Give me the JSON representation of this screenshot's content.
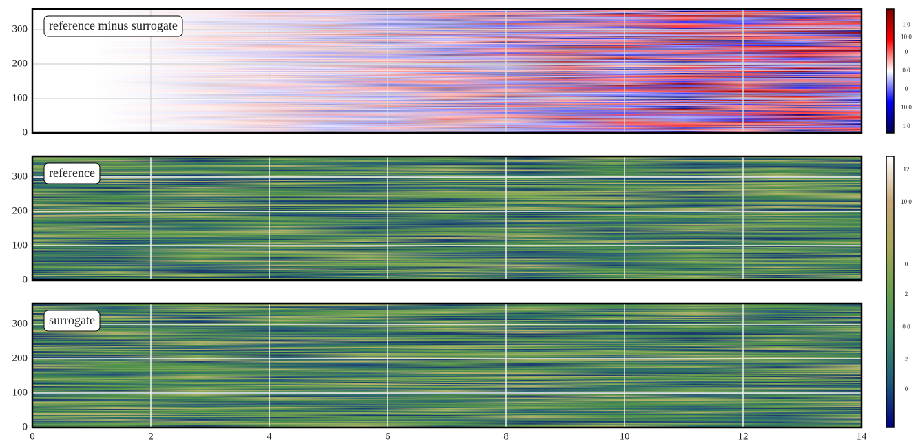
{
  "chart_data": [
    {
      "type": "heatmap",
      "label": "reference minus surrogate",
      "colormap": "seismic",
      "grid_color": "#d9d9d9",
      "xlim": [
        0,
        14
      ],
      "xticks": [
        0,
        2,
        4,
        6,
        8,
        10,
        12,
        14
      ],
      "ylim": [
        0,
        360
      ],
      "yticks": [
        0,
        100,
        200,
        300
      ]
    },
    {
      "type": "heatmap",
      "label": "reference",
      "colormap": "gist_earth",
      "grid_color": "#f2f2f2",
      "xlim": [
        0,
        14
      ],
      "xticks": [
        0,
        2,
        4,
        6,
        8,
        10,
        12,
        14
      ],
      "ylim": [
        0,
        360
      ],
      "yticks": [
        0,
        100,
        200,
        300
      ]
    },
    {
      "type": "heatmap",
      "label": "surrogate",
      "colormap": "gist_earth",
      "grid_color": "#f2f2f2",
      "xlim": [
        0,
        14
      ],
      "xticks": [
        0,
        2,
        4,
        6,
        8,
        10,
        12,
        14
      ],
      "ylim": [
        0,
        360
      ],
      "yticks": [
        0,
        100,
        200,
        300
      ]
    }
  ],
  "colorbars": [
    {
      "colormap": "seismic",
      "tick_labels": [
        "1 0",
        "10 0",
        "0",
        "0 0",
        "0",
        "10 0",
        "1 0"
      ]
    },
    {
      "colormap": "gist_earth",
      "tick_labels": [
        "12",
        "10 0",
        "0",
        "2",
        "0 0",
        "2",
        "0"
      ]
    }
  ]
}
